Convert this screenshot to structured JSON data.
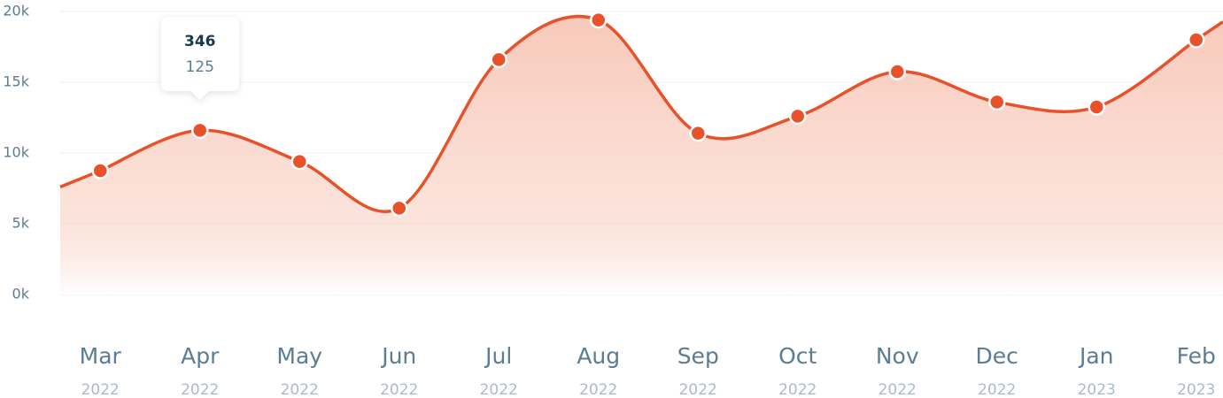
{
  "chart_data": {
    "type": "area",
    "categories": [
      "Mar",
      "Apr",
      "May",
      "Jun",
      "Jul",
      "Aug",
      "Sep",
      "Oct",
      "Nov",
      "Dec",
      "Jan",
      "Feb"
    ],
    "category_years": [
      "2022",
      "2022",
      "2022",
      "2022",
      "2022",
      "2022",
      "2022",
      "2022",
      "2022",
      "2022",
      "2023",
      "2023"
    ],
    "series": [
      {
        "color": "#e8522a",
        "values": [
          8750,
          11600,
          9400,
          6100,
          16600,
          19400,
          11400,
          12600,
          15750,
          13600,
          13250,
          18000
        ]
      }
    ],
    "ylim": [
      0,
      20000
    ],
    "yticks": [
      {
        "value": 0,
        "label": "0k"
      },
      {
        "value": 5000,
        "label": "5k"
      },
      {
        "value": 10000,
        "label": "10k"
      },
      {
        "value": 15000,
        "label": "15k"
      },
      {
        "value": 20000,
        "label": "20k"
      }
    ],
    "grid": true,
    "tooltip": {
      "category_index": 1,
      "title": 346,
      "subtitle": 125
    }
  }
}
